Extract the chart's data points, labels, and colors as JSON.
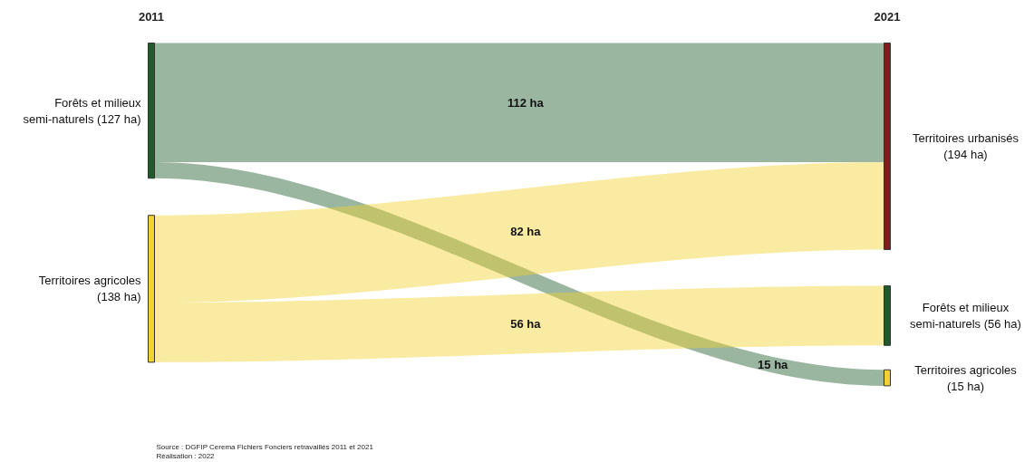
{
  "chart_data": {
    "type": "other",
    "categories": [
      "Territoires urbanisés\n(194 ha)",
      "Forêts et milieux\nsemi-naturels (56 ha)",
      "Territoires agricoles\n(15 ha)"
    ],
    "colors": [
      "#7b1e1e",
      "#1f5a2c",
      "#f2d230"
    ],
    "series": [
      {
        "name": "Forêts et milieux\nsemi-naturels (127 ha)",
        "color": "#1f5a2c",
        "values": [
          112,
          null,
          15
        ],
        "value_labels": [
          "112 ha",
          null,
          "15 ha"
        ]
      },
      {
        "name": "Territoires agricoles\n(138 ha)",
        "color": "#f2d230",
        "values": [
          82,
          56,
          null
        ],
        "value_labels": [
          "82 ha",
          "56 ha",
          null
        ]
      }
    ],
    "annotations": [
      "2011",
      "2021",
      "Source : DGFIP Cerema Fichiers Fonciers retravaillés 2011 et 2021",
      "Réalisation : 2022"
    ]
  }
}
